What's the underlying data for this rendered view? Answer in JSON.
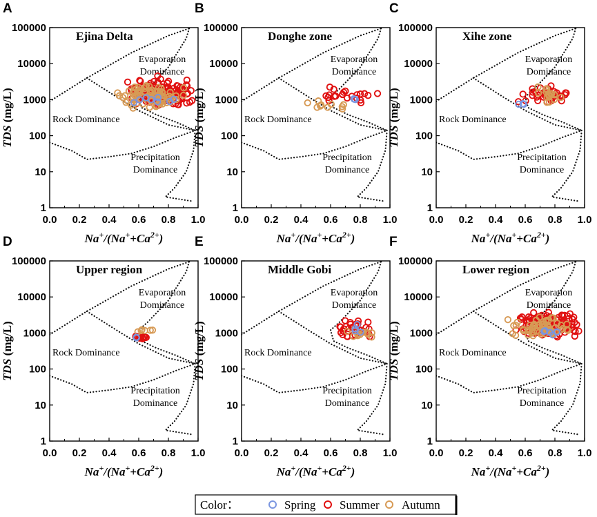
{
  "chart_data": {
    "type": "scatter",
    "figure_title": "",
    "x_axis_label": {
      "pre": "Na",
      "s1": "+",
      "mid1": "/(Na",
      "s2": "+",
      "mid2": "+Ca",
      "s3": "2+",
      "post": ")"
    },
    "y_axis_label": {
      "italic": "TDS",
      "plain": " (mg/L)"
    },
    "xlim": [
      0,
      1
    ],
    "ylim_log10": [
      0,
      5
    ],
    "x_ticks": [
      "0.0",
      "0.2",
      "0.4",
      "0.6",
      "0.8",
      "1.0"
    ],
    "y_ticks": [
      "1",
      "10",
      "100",
      "1000",
      "10000",
      "100000"
    ],
    "region_labels": {
      "evap1": "Evaporation",
      "evap2": "Dominance",
      "rock": "Rock Dominance",
      "prec1": "Precipitation",
      "prec2": "Dominance"
    },
    "legend": {
      "title": "Color：",
      "entries": [
        {
          "name": "Spring",
          "color": "#7b96e0"
        },
        {
          "name": "Summer",
          "color": "#e01010"
        },
        {
          "name": "Autumn",
          "color": "#d79a55"
        }
      ]
    },
    "panels": [
      {
        "label": "A",
        "title": "Ejina Delta",
        "clusters": [
          {
            "season": "Summer",
            "n": 150,
            "x": [
              0.5,
              0.98
            ],
            "y": [
              500,
              5000
            ]
          },
          {
            "season": "Autumn",
            "n": 75,
            "x": [
              0.42,
              0.92
            ],
            "y": [
              500,
              3500
            ]
          },
          {
            "season": "Spring",
            "n": 8,
            "x": [
              0.55,
              0.85
            ],
            "y": [
              700,
              1600
            ]
          }
        ]
      },
      {
        "label": "B",
        "title": "Donghe zone",
        "clusters": [
          {
            "season": "Summer",
            "n": 22,
            "x": [
              0.55,
              0.96
            ],
            "y": [
              550,
              3000
            ]
          },
          {
            "season": "Autumn",
            "n": 10,
            "x": [
              0.42,
              0.72
            ],
            "y": [
              450,
              1000
            ]
          },
          {
            "season": "Spring",
            "n": 3,
            "x": [
              0.62,
              0.92
            ],
            "y": [
              900,
              1300
            ]
          }
        ]
      },
      {
        "label": "C",
        "title": "Xihe zone",
        "clusters": [
          {
            "season": "Summer",
            "n": 38,
            "x": [
              0.55,
              0.93
            ],
            "y": [
              600,
              2800
            ]
          },
          {
            "season": "Autumn",
            "n": 18,
            "x": [
              0.64,
              0.88
            ],
            "y": [
              700,
              2800
            ]
          },
          {
            "season": "Spring",
            "n": 3,
            "x": [
              0.53,
              0.6
            ],
            "y": [
              700,
              850
            ]
          }
        ]
      },
      {
        "label": "D",
        "title": "Upper region",
        "clusters": [
          {
            "season": "Summer",
            "n": 14,
            "x": [
              0.56,
              0.66
            ],
            "y": [
              650,
              900
            ]
          },
          {
            "season": "Autumn",
            "n": 6,
            "x": [
              0.56,
              0.72
            ],
            "y": [
              800,
              1700
            ]
          },
          {
            "season": "Spring",
            "n": 2,
            "x": [
              0.57,
              0.6
            ],
            "y": [
              700,
              800
            ]
          }
        ]
      },
      {
        "label": "E",
        "title": "Middle Gobi",
        "clusters": [
          {
            "season": "Summer",
            "n": 32,
            "x": [
              0.6,
              0.93
            ],
            "y": [
              600,
              2600
            ]
          },
          {
            "season": "Autumn",
            "n": 12,
            "x": [
              0.68,
              0.9
            ],
            "y": [
              650,
              1600
            ]
          },
          {
            "season": "Spring",
            "n": 4,
            "x": [
              0.7,
              0.82
            ],
            "y": [
              600,
              2200
            ]
          }
        ]
      },
      {
        "label": "F",
        "title": "Lower region",
        "clusters": [
          {
            "season": "Summer",
            "n": 130,
            "x": [
              0.52,
              0.99
            ],
            "y": [
              550,
              4800
            ]
          },
          {
            "season": "Autumn",
            "n": 65,
            "x": [
              0.45,
              0.94
            ],
            "y": [
              550,
              3600
            ]
          },
          {
            "season": "Spring",
            "n": 6,
            "x": [
              0.6,
              0.85
            ],
            "y": [
              700,
              1500
            ]
          }
        ]
      }
    ]
  }
}
